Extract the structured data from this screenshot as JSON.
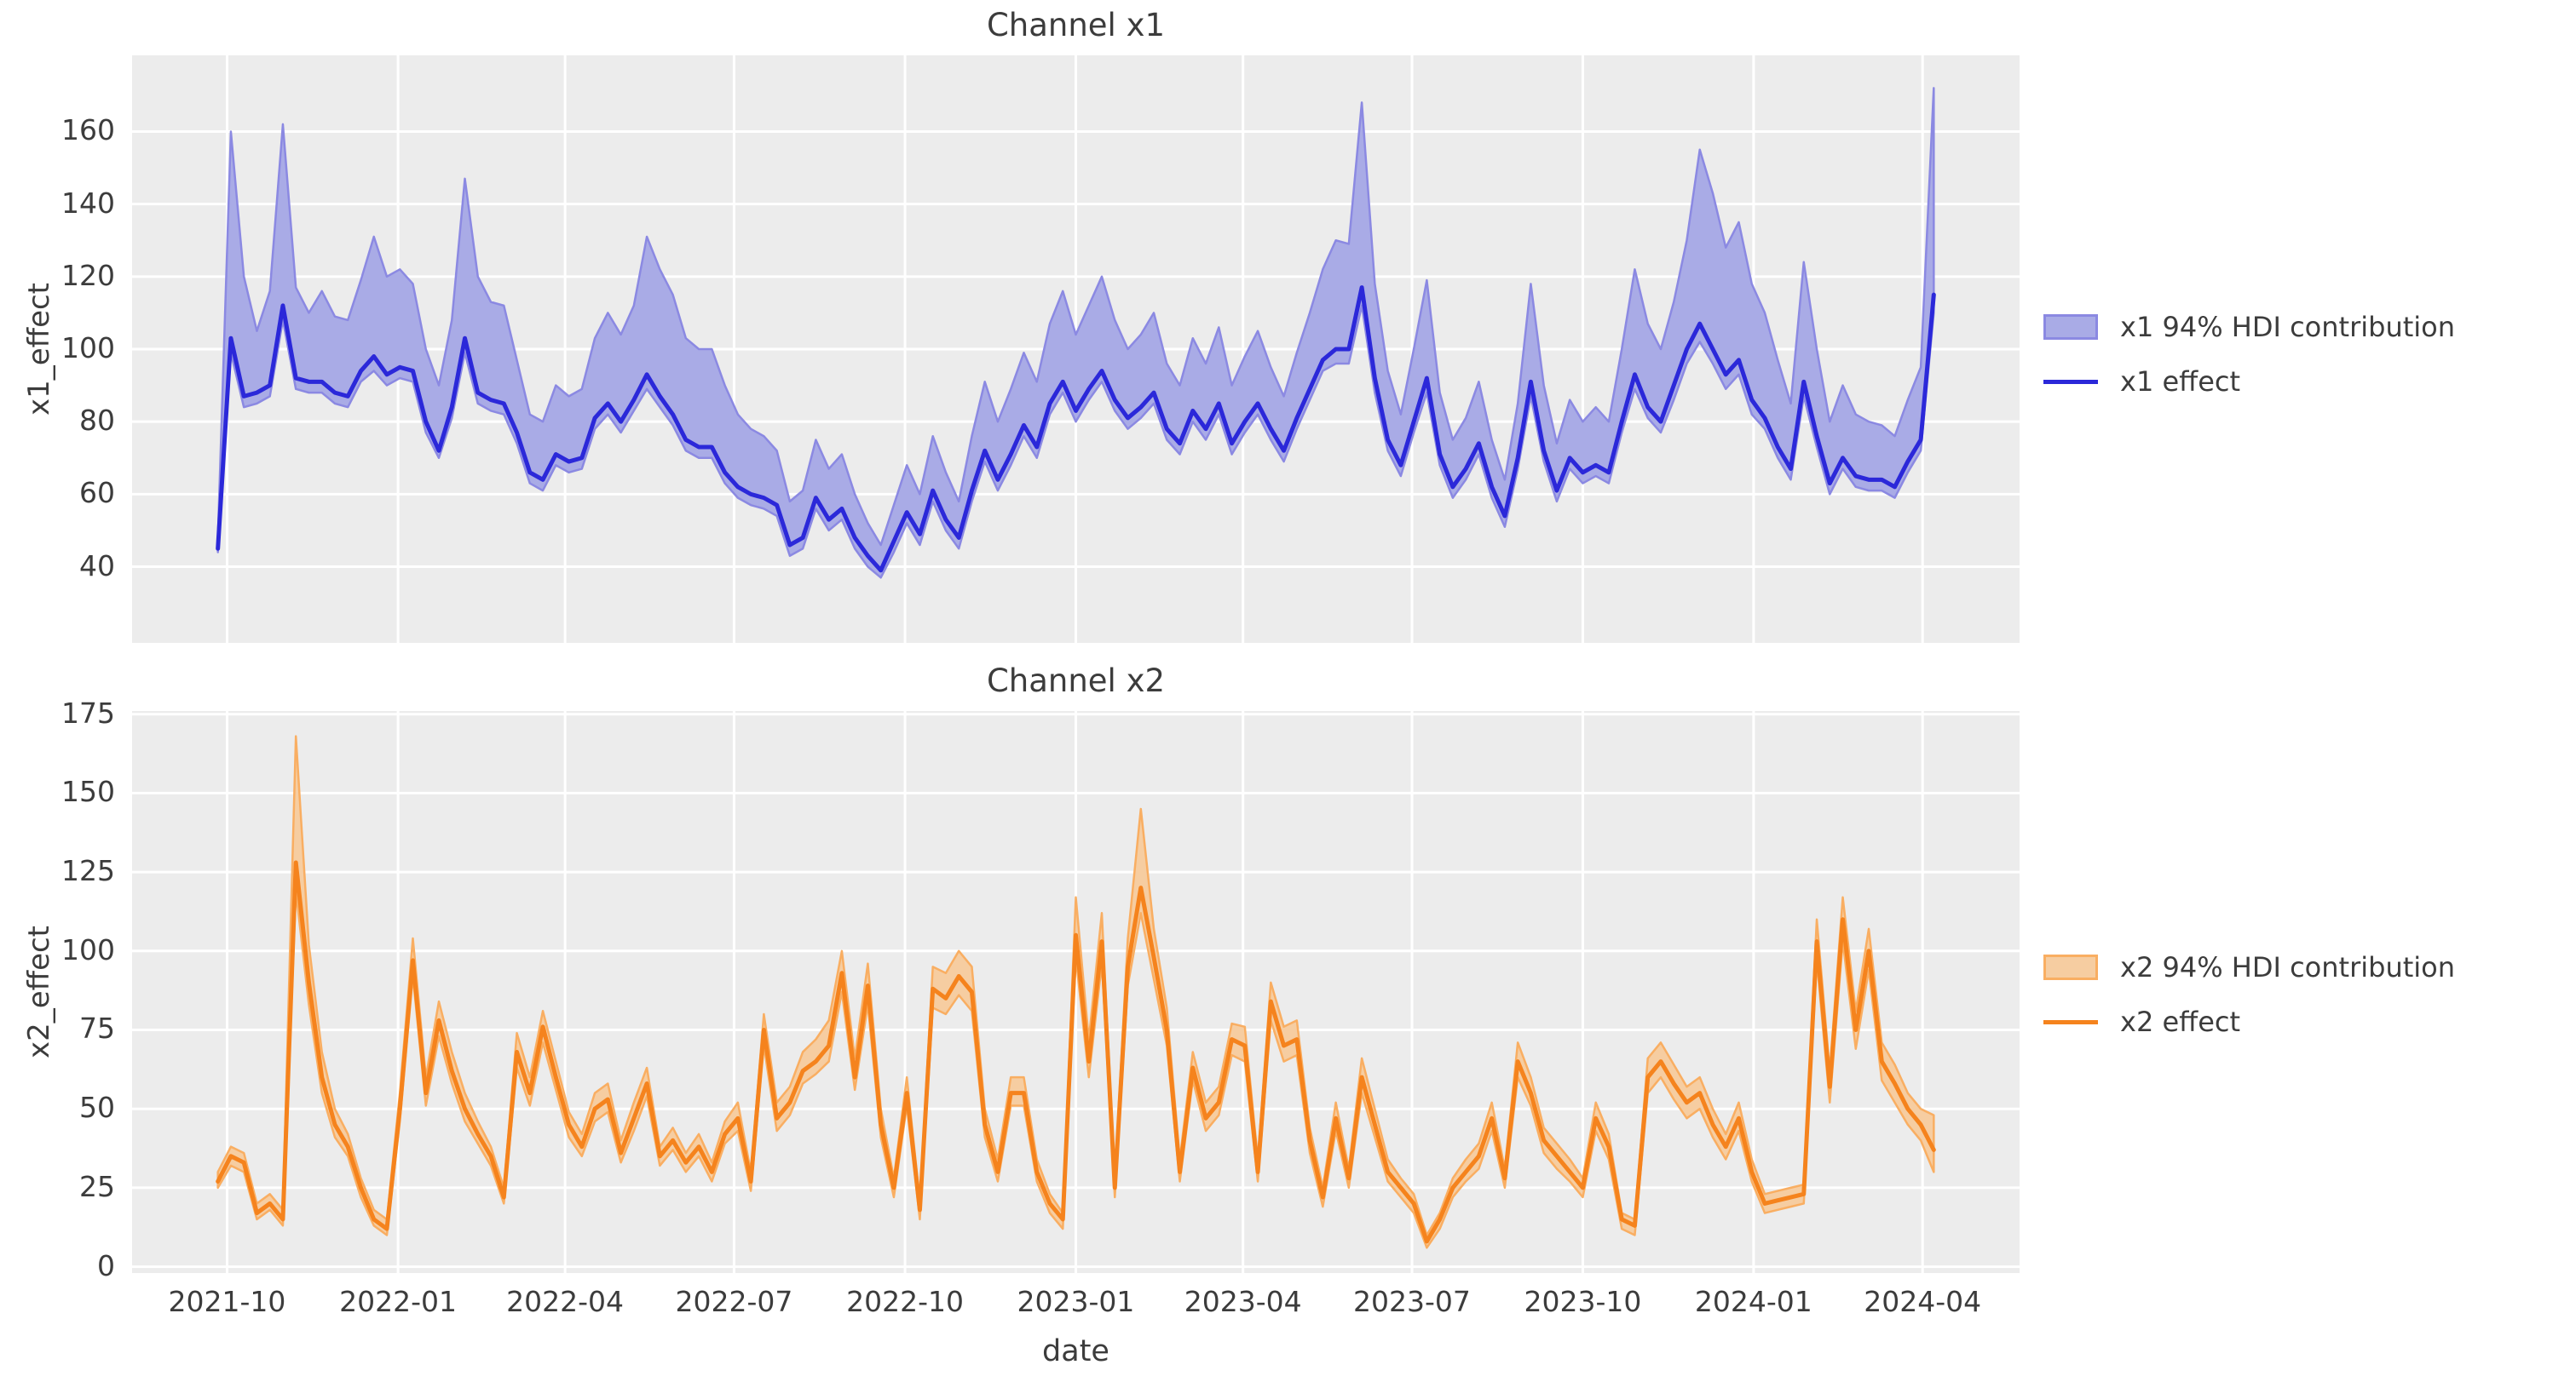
{
  "figure": {
    "background": "#ffffff",
    "plot_background": "#ececec",
    "grid_color": "#ffffff",
    "text_color": "#3c3c3c"
  },
  "chart_data": [
    {
      "type": "area+line",
      "title": "Channel x1",
      "ylabel": "x1_effect",
      "xlabel": "date",
      "legend": [
        "x1 94% HDI contribution",
        "x1 effect"
      ],
      "legend_position": "right-outside",
      "grid": true,
      "x_start": "2021-09-26",
      "x_freq_days": 7,
      "n_points": 133,
      "x_tick_labels": [
        "2021-10",
        "2022-01",
        "2022-04",
        "2022-07",
        "2022-10",
        "2023-01",
        "2023-04",
        "2023-07",
        "2023-10",
        "2024-01",
        "2024-04"
      ],
      "x_tick_week_index": [
        0.71,
        13.86,
        26.71,
        39.71,
        52.86,
        66.0,
        78.86,
        91.86,
        105.0,
        118.14,
        131.14
      ],
      "xlim_week_index": [
        -6.6,
        138.6
      ],
      "ylim": [
        19,
        181
      ],
      "yticks": [
        40,
        60,
        80,
        100,
        120,
        140,
        160
      ],
      "colors": {
        "line": "#2b28d9",
        "band_fill": "#a9abe6",
        "band_edge": "#8b89e2"
      },
      "series": [
        {
          "name": "x1 effect",
          "role": "line",
          "values": [
            45,
            103,
            87,
            88,
            90,
            112,
            92,
            91,
            91,
            88,
            87,
            94,
            98,
            93,
            95,
            94,
            80,
            72,
            84,
            103,
            88,
            86,
            85,
            77,
            66,
            64,
            71,
            69,
            70,
            81,
            85,
            80,
            86,
            93,
            87,
            82,
            75,
            73,
            73,
            66,
            62,
            60,
            59,
            57,
            46,
            48,
            59,
            53,
            56,
            48,
            43,
            39,
            47,
            55,
            49,
            61,
            53,
            48,
            61,
            72,
            64,
            71,
            79,
            73,
            85,
            91,
            83,
            89,
            94,
            86,
            81,
            84,
            88,
            78,
            74,
            83,
            78,
            85,
            74,
            80,
            85,
            78,
            72,
            81,
            89,
            97,
            100,
            100,
            117,
            92,
            75,
            68,
            80,
            92,
            71,
            62,
            67,
            74,
            62,
            54,
            70,
            91,
            72,
            61,
            70,
            66,
            68,
            66,
            80,
            93,
            84,
            80,
            90,
            100,
            107,
            100,
            93,
            97,
            86,
            81,
            73,
            67,
            91,
            76,
            63,
            70,
            65,
            64,
            64,
            62,
            69,
            75,
            115
          ]
        },
        {
          "name": "x1 94% HDI upper",
          "role": "band_upper",
          "values": [
            48,
            160,
            120,
            105,
            116,
            162,
            117,
            110,
            116,
            109,
            108,
            119,
            131,
            120,
            122,
            118,
            100,
            90,
            108,
            147,
            120,
            113,
            112,
            97,
            82,
            80,
            90,
            87,
            89,
            103,
            110,
            104,
            112,
            131,
            122,
            115,
            103,
            100,
            100,
            90,
            82,
            78,
            76,
            72,
            58,
            61,
            75,
            67,
            71,
            60,
            52,
            46,
            57,
            68,
            60,
            76,
            66,
            58,
            76,
            91,
            80,
            89,
            99,
            91,
            107,
            116,
            104,
            112,
            120,
            108,
            100,
            104,
            110,
            96,
            90,
            103,
            96,
            106,
            90,
            98,
            105,
            95,
            87,
            99,
            110,
            122,
            130,
            129,
            168,
            118,
            94,
            82,
            100,
            119,
            88,
            75,
            81,
            91,
            75,
            64,
            85,
            118,
            90,
            74,
            86,
            80,
            84,
            80,
            100,
            122,
            107,
            100,
            113,
            130,
            155,
            143,
            128,
            135,
            118,
            110,
            97,
            85,
            124,
            100,
            80,
            90,
            82,
            80,
            79,
            76,
            86,
            95,
            172
          ]
        },
        {
          "name": "x1 94% HDI lower",
          "role": "band_lower",
          "values": [
            44,
            99,
            84,
            85,
            87,
            108,
            89,
            88,
            88,
            85,
            84,
            91,
            94,
            90,
            92,
            91,
            77,
            70,
            81,
            99,
            85,
            83,
            82,
            74,
            63,
            61,
            68,
            66,
            67,
            78,
            82,
            77,
            83,
            89,
            84,
            79,
            72,
            70,
            70,
            63,
            59,
            57,
            56,
            54,
            43,
            45,
            56,
            50,
            53,
            45,
            40,
            37,
            44,
            52,
            46,
            58,
            50,
            45,
            58,
            69,
            61,
            68,
            76,
            70,
            82,
            88,
            80,
            86,
            91,
            83,
            78,
            81,
            85,
            75,
            71,
            80,
            75,
            82,
            71,
            77,
            82,
            75,
            69,
            78,
            86,
            94,
            96,
            96,
            112,
            88,
            72,
            65,
            77,
            88,
            68,
            59,
            64,
            71,
            59,
            51,
            67,
            87,
            69,
            58,
            67,
            63,
            65,
            63,
            77,
            89,
            81,
            77,
            86,
            96,
            102,
            96,
            89,
            93,
            82,
            78,
            70,
            64,
            87,
            73,
            60,
            67,
            62,
            61,
            61,
            59,
            66,
            72,
            110
          ]
        }
      ]
    },
    {
      "type": "area+line",
      "title": "Channel x2",
      "ylabel": "x2_effect",
      "xlabel": "date",
      "legend": [
        "x2 94% HDI contribution",
        "x2 effect"
      ],
      "legend_position": "right-outside",
      "grid": true,
      "x_start": "2021-09-26",
      "x_freq_days": 7,
      "n_points": 133,
      "x_tick_labels": [
        "2021-10",
        "2022-01",
        "2022-04",
        "2022-07",
        "2022-10",
        "2023-01",
        "2023-04",
        "2023-07",
        "2023-10",
        "2024-01",
        "2024-04"
      ],
      "x_tick_week_index": [
        0.71,
        13.86,
        26.71,
        39.71,
        52.86,
        66.0,
        78.86,
        91.86,
        105.0,
        118.14,
        131.14
      ],
      "xlim_week_index": [
        -6.6,
        138.6
      ],
      "ylim": [
        -2,
        176
      ],
      "yticks": [
        0,
        25,
        50,
        75,
        100,
        125,
        150,
        175
      ],
      "colors": {
        "line": "#f5831d",
        "band_fill": "#f6cda1",
        "band_edge": "#f9ae62"
      },
      "series": [
        {
          "name": "x2 effect",
          "role": "line",
          "values": [
            27,
            35,
            33,
            17,
            20,
            15,
            128,
            90,
            60,
            45,
            38,
            25,
            15,
            12,
            50,
            97,
            55,
            78,
            62,
            50,
            42,
            35,
            22,
            68,
            55,
            76,
            60,
            45,
            38,
            50,
            53,
            36,
            47,
            58,
            35,
            40,
            33,
            38,
            30,
            42,
            47,
            27,
            75,
            47,
            52,
            62,
            65,
            70,
            93,
            60,
            89,
            45,
            25,
            55,
            18,
            88,
            85,
            92,
            87,
            45,
            30,
            55,
            55,
            30,
            20,
            15,
            105,
            65,
            103,
            25,
            95,
            120,
            98,
            75,
            30,
            63,
            47,
            52,
            72,
            70,
            30,
            84,
            70,
            72,
            40,
            22,
            47,
            28,
            60,
            45,
            30,
            25,
            20,
            8,
            15,
            25,
            30,
            35,
            47,
            28,
            65,
            55,
            40,
            35,
            30,
            25,
            47,
            38,
            15,
            13,
            60,
            65,
            58,
            52,
            55,
            45,
            38,
            47,
            30,
            20,
            21,
            22,
            23,
            103,
            57,
            110,
            75,
            100,
            65,
            58,
            50,
            45,
            37
          ]
        },
        {
          "name": "x2 94% HDI upper",
          "role": "band_upper",
          "values": [
            30,
            38,
            36,
            20,
            23,
            18,
            168,
            102,
            68,
            50,
            42,
            28,
            18,
            15,
            55,
            104,
            60,
            84,
            68,
            55,
            46,
            38,
            25,
            74,
            60,
            81,
            65,
            49,
            42,
            55,
            58,
            40,
            52,
            63,
            38,
            44,
            36,
            42,
            33,
            46,
            52,
            30,
            80,
            52,
            57,
            68,
            72,
            78,
            100,
            66,
            96,
            50,
            28,
            60,
            21,
            95,
            93,
            100,
            95,
            50,
            34,
            60,
            60,
            34,
            23,
            17,
            117,
            72,
            112,
            28,
            104,
            145,
            107,
            82,
            34,
            68,
            52,
            57,
            77,
            76,
            34,
            90,
            76,
            78,
            44,
            25,
            52,
            31,
            66,
            50,
            34,
            28,
            23,
            10,
            17,
            28,
            34,
            39,
            52,
            31,
            71,
            60,
            44,
            39,
            34,
            28,
            52,
            42,
            17,
            15,
            66,
            71,
            64,
            57,
            60,
            50,
            42,
            52,
            34,
            23,
            24,
            25,
            26,
            110,
            62,
            117,
            81,
            107,
            71,
            64,
            55,
            50,
            48
          ]
        },
        {
          "name": "x2 94% HDI lower",
          "role": "band_lower",
          "values": [
            25,
            32,
            30,
            15,
            18,
            13,
            119,
            83,
            55,
            41,
            35,
            22,
            13,
            10,
            46,
            92,
            51,
            73,
            58,
            46,
            39,
            32,
            20,
            63,
            51,
            71,
            56,
            41,
            35,
            46,
            49,
            33,
            43,
            54,
            32,
            37,
            30,
            35,
            27,
            39,
            43,
            24,
            70,
            43,
            48,
            58,
            61,
            65,
            87,
            56,
            83,
            41,
            22,
            51,
            15,
            82,
            80,
            86,
            81,
            41,
            27,
            51,
            51,
            27,
            17,
            12,
            98,
            60,
            96,
            22,
            89,
            112,
            91,
            70,
            27,
            59,
            43,
            48,
            67,
            65,
            27,
            78,
            65,
            67,
            36,
            19,
            43,
            25,
            55,
            41,
            27,
            22,
            17,
            6,
            12,
            22,
            27,
            31,
            43,
            25,
            60,
            51,
            36,
            31,
            27,
            22,
            43,
            34,
            12,
            10,
            55,
            60,
            53,
            47,
            50,
            41,
            34,
            43,
            27,
            17,
            18,
            19,
            20,
            97,
            52,
            103,
            69,
            94,
            59,
            52,
            45,
            40,
            30
          ]
        }
      ]
    }
  ]
}
